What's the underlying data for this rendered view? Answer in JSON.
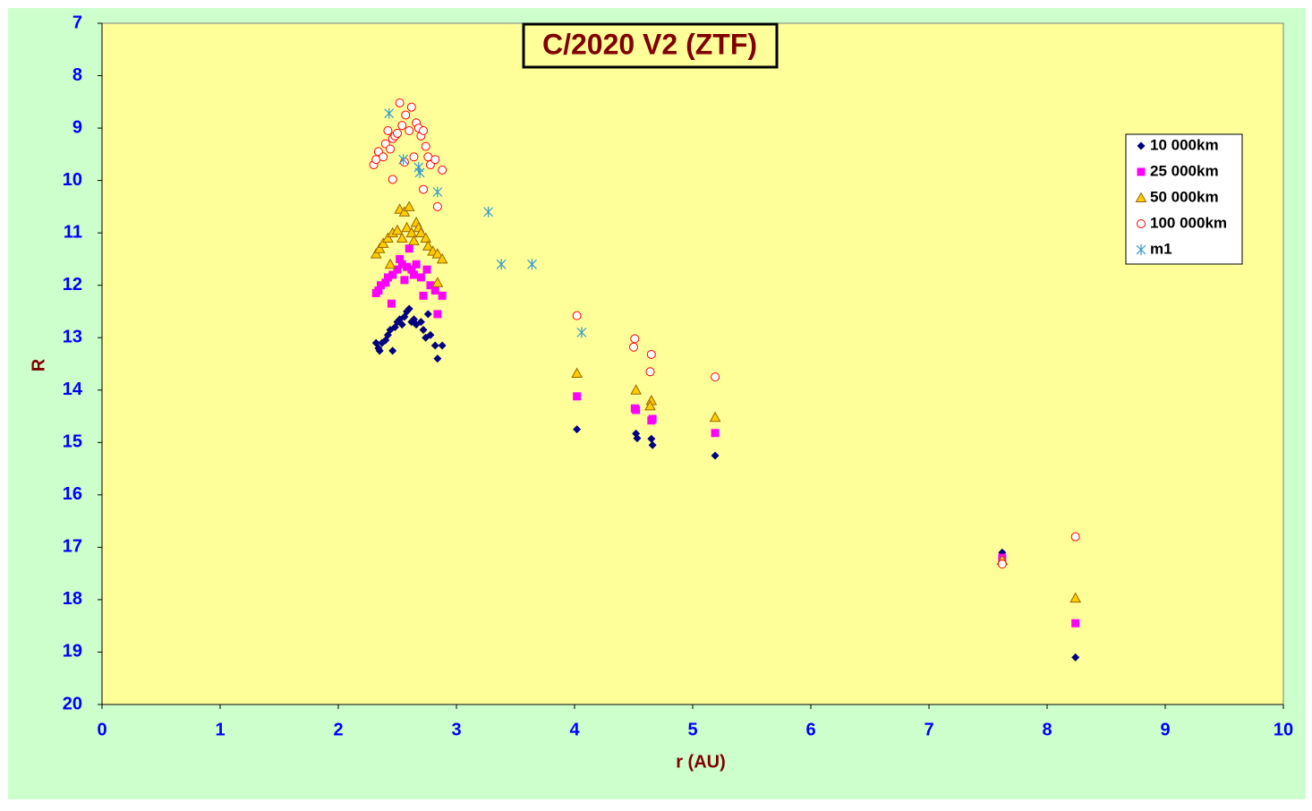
{
  "chart_data": {
    "type": "scatter",
    "title": "C/2020 V2 (ZTF)",
    "x_label": "r (AU)",
    "y_label": "R",
    "xlim": [
      0,
      10
    ],
    "xticks": [
      0,
      1,
      2,
      3,
      4,
      5,
      6,
      7,
      8,
      9,
      10
    ],
    "ylim": [
      20,
      7
    ],
    "yticks": [
      7,
      8,
      9,
      10,
      11,
      12,
      13,
      14,
      15,
      16,
      17,
      18,
      19,
      20
    ],
    "legend": "upper right",
    "series": [
      {
        "name": "10 000km",
        "color": "#000080",
        "marker": "diamond",
        "x": [
          2.32,
          2.34,
          2.35,
          2.37,
          2.4,
          2.42,
          2.44,
          2.46,
          2.48,
          2.5,
          2.52,
          2.54,
          2.56,
          2.58,
          2.6,
          2.62,
          2.64,
          2.66,
          2.7,
          2.72,
          2.74,
          2.76,
          2.78,
          2.82,
          2.84,
          2.88,
          4.02,
          4.52,
          4.53,
          4.65,
          4.66,
          5.19,
          7.62,
          8.24
        ],
        "values": [
          13.1,
          13.2,
          13.25,
          13.1,
          13.05,
          12.95,
          12.85,
          13.25,
          12.8,
          12.7,
          12.65,
          12.75,
          12.6,
          12.5,
          12.45,
          12.7,
          12.65,
          12.75,
          12.7,
          12.85,
          13.0,
          12.55,
          12.95,
          13.15,
          13.4,
          13.15,
          14.75,
          14.83,
          14.92,
          14.93,
          15.05,
          15.25,
          17.1,
          19.1
        ]
      },
      {
        "name": "25 000km",
        "color": "#ff00ff",
        "marker": "square",
        "x": [
          2.32,
          2.34,
          2.36,
          2.4,
          2.42,
          2.45,
          2.46,
          2.5,
          2.52,
          2.54,
          2.56,
          2.58,
          2.6,
          2.62,
          2.64,
          2.66,
          2.7,
          2.72,
          2.75,
          2.78,
          2.82,
          2.84,
          2.88,
          4.02,
          4.51,
          4.52,
          4.65,
          4.66,
          5.19,
          7.62,
          8.24
        ],
        "values": [
          12.15,
          12.1,
          12.0,
          11.95,
          11.85,
          12.35,
          11.8,
          11.7,
          11.5,
          11.6,
          11.9,
          11.65,
          11.3,
          11.7,
          11.8,
          11.6,
          11.85,
          12.2,
          11.7,
          12.0,
          12.1,
          12.55,
          12.2,
          14.12,
          14.35,
          14.38,
          14.58,
          14.55,
          14.82,
          17.2,
          18.45
        ]
      },
      {
        "name": "50 000km",
        "color": "#ffcc00",
        "marker": "triangle",
        "x": [
          2.32,
          2.35,
          2.38,
          2.42,
          2.44,
          2.46,
          2.5,
          2.52,
          2.54,
          2.56,
          2.58,
          2.6,
          2.62,
          2.64,
          2.66,
          2.68,
          2.7,
          2.74,
          2.76,
          2.8,
          2.84,
          2.88,
          2.84,
          4.02,
          4.52,
          4.65,
          4.64,
          5.19,
          7.62,
          8.24
        ],
        "values": [
          11.4,
          11.3,
          11.2,
          11.1,
          11.6,
          11.0,
          10.95,
          10.55,
          11.1,
          10.6,
          10.9,
          10.5,
          11.0,
          11.15,
          10.8,
          10.9,
          11.0,
          11.1,
          11.25,
          11.35,
          11.4,
          11.5,
          11.95,
          13.68,
          14.0,
          14.2,
          14.3,
          14.52,
          17.25,
          17.97
        ]
      },
      {
        "name": "100 000km",
        "color": "#ff0000",
        "marker": "circle",
        "x": [
          2.3,
          2.32,
          2.34,
          2.38,
          2.4,
          2.42,
          2.44,
          2.46,
          2.48,
          2.5,
          2.52,
          2.54,
          2.56,
          2.57,
          2.6,
          2.62,
          2.64,
          2.66,
          2.68,
          2.7,
          2.72,
          2.74,
          2.76,
          2.78,
          2.82,
          2.84,
          2.88,
          2.72,
          2.46,
          4.02,
          4.51,
          4.5,
          4.65,
          4.64,
          5.19,
          7.62,
          8.24
        ],
        "values": [
          9.7,
          9.6,
          9.45,
          9.55,
          9.3,
          9.05,
          9.4,
          9.2,
          9.15,
          9.1,
          8.52,
          8.95,
          9.65,
          8.75,
          9.05,
          8.6,
          9.55,
          8.9,
          9.0,
          9.15,
          9.05,
          9.35,
          9.55,
          9.7,
          9.6,
          10.5,
          9.8,
          10.17,
          9.98,
          12.58,
          13.02,
          13.18,
          13.32,
          13.65,
          13.75,
          17.32,
          16.8
        ]
      },
      {
        "name": "m1",
        "color": "#3399cc",
        "marker": "asterisk",
        "x": [
          2.43,
          2.55,
          2.68,
          2.69,
          2.84,
          3.27,
          3.38,
          3.64,
          4.06
        ],
        "values": [
          8.72,
          9.6,
          9.75,
          9.85,
          10.22,
          10.6,
          11.6,
          11.6,
          12.9
        ]
      }
    ]
  }
}
